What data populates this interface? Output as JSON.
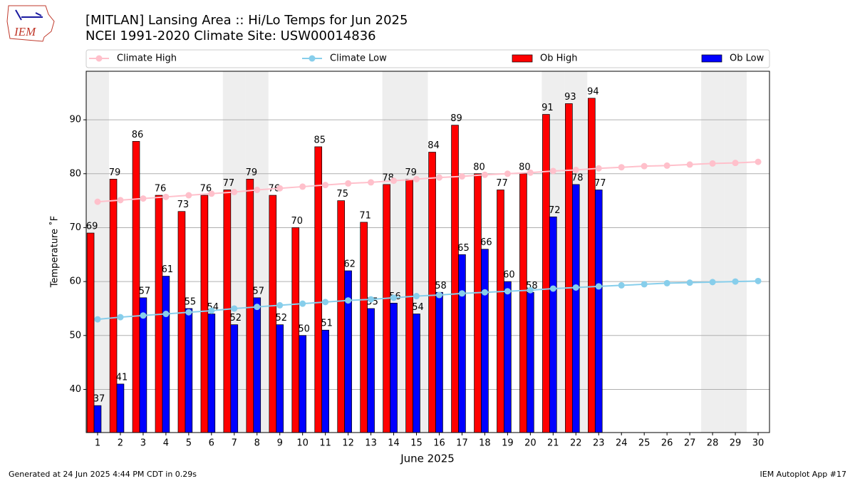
{
  "chart_data": {
    "type": "bar",
    "title": "[MITLAN] Lansing Area :: Hi/Lo Temps for Jun 2025",
    "subtitle": "NCEI 1991-2020 Climate Site: USW00014836",
    "x_label": "June 2025",
    "y_label": "Temperature ˚F",
    "x": [
      1,
      2,
      3,
      4,
      5,
      6,
      7,
      8,
      9,
      10,
      11,
      12,
      13,
      14,
      15,
      16,
      17,
      18,
      19,
      20,
      21,
      22,
      23,
      24,
      25,
      26,
      27,
      28,
      29,
      30
    ],
    "xlim": [
      0.5,
      30.5
    ],
    "xticks": [
      1,
      2,
      3,
      4,
      5,
      6,
      7,
      8,
      9,
      10,
      11,
      12,
      13,
      14,
      15,
      16,
      17,
      18,
      19,
      20,
      21,
      22,
      23,
      24,
      25,
      26,
      27,
      28,
      29,
      30
    ],
    "ylim": [
      32,
      99
    ],
    "yticks": [
      40,
      50,
      60,
      70,
      80,
      90
    ],
    "grid": true,
    "shaded_x": [
      1,
      7,
      8,
      14,
      15,
      21,
      22,
      28,
      29
    ],
    "shade_color": "#eeeeee",
    "series": [
      {
        "name": "Climate High",
        "type": "line",
        "color": "#ffc0cb",
        "values": [
          74.8,
          75.1,
          75.4,
          75.7,
          76.0,
          76.3,
          76.6,
          77.0,
          77.3,
          77.6,
          77.9,
          78.2,
          78.4,
          78.7,
          79.0,
          79.3,
          79.5,
          79.8,
          80.0,
          80.2,
          80.5,
          80.7,
          81.0,
          81.2,
          81.4,
          81.5,
          81.7,
          81.9,
          82.0,
          82.2
        ]
      },
      {
        "name": "Climate Low",
        "type": "line",
        "color": "#87ceeb",
        "values": [
          53.0,
          53.4,
          53.7,
          54.0,
          54.3,
          54.6,
          55.0,
          55.3,
          55.6,
          55.9,
          56.2,
          56.5,
          56.7,
          57.0,
          57.3,
          57.5,
          57.8,
          58.0,
          58.2,
          58.4,
          58.7,
          58.9,
          59.1,
          59.3,
          59.5,
          59.7,
          59.8,
          59.9,
          60.0,
          60.1
        ]
      },
      {
        "name": "Ob High",
        "type": "bar",
        "color": "#ff0000",
        "values": [
          69,
          79,
          86,
          76,
          73,
          76,
          77,
          79,
          76,
          70,
          85,
          75,
          71,
          78,
          79,
          84,
          89,
          80,
          77,
          80,
          91,
          93,
          94,
          null,
          null,
          null,
          null,
          null,
          null,
          null
        ]
      },
      {
        "name": "Ob Low",
        "type": "bar",
        "color": "#0000ff",
        "values": [
          37,
          41,
          57,
          61,
          55,
          54,
          52,
          57,
          52,
          50,
          51,
          62,
          55,
          56,
          54,
          58,
          65,
          66,
          60,
          58,
          72,
          78,
          77,
          null,
          null,
          null,
          null,
          null,
          null,
          null
        ]
      }
    ]
  },
  "logo_text": "IEM",
  "footer_left": "Generated at 24 Jun 2025 4:44 PM CDT in 0.29s",
  "footer_right": "IEM Autoplot App #17"
}
